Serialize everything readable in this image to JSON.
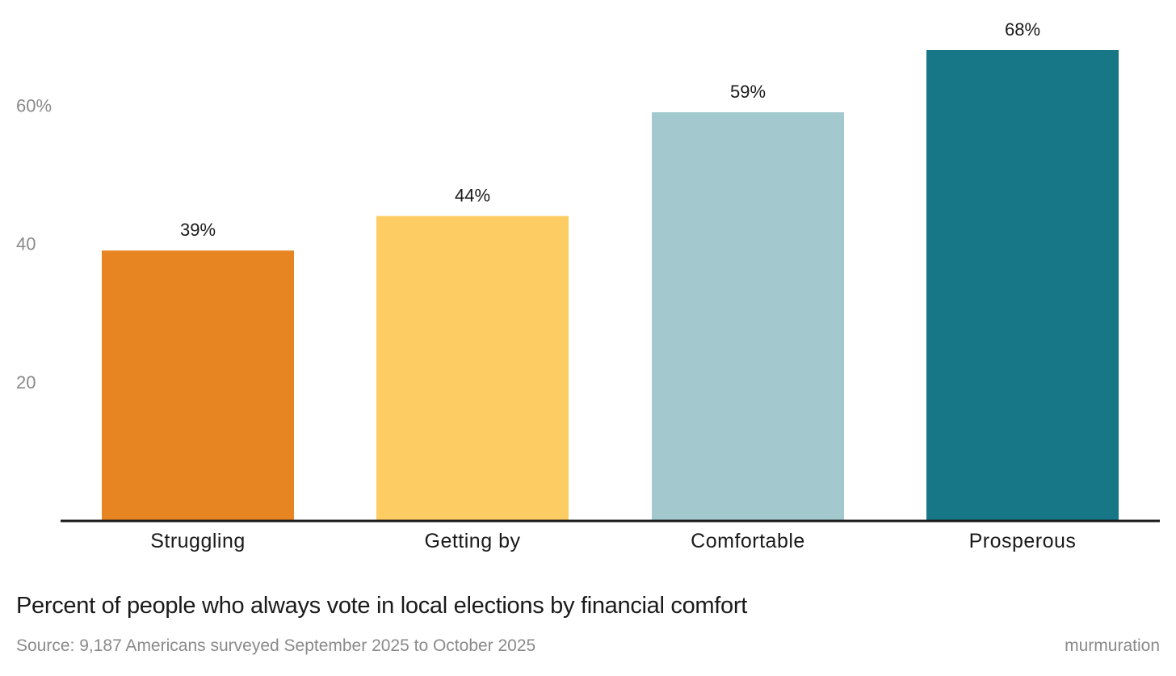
{
  "chart_data": {
    "type": "bar",
    "categories": [
      "Struggling",
      "Getting by",
      "Comfortable",
      "Prosperous"
    ],
    "values": [
      39,
      44,
      59,
      68
    ],
    "data_labels": [
      "39%",
      "44%",
      "59%",
      "68%"
    ],
    "colors": [
      "#e88523",
      "#fdcd63",
      "#a3c9cf",
      "#177786"
    ],
    "yticks": [
      {
        "value": 20,
        "label": "20"
      },
      {
        "value": 40,
        "label": "40"
      },
      {
        "value": 60,
        "label": "60%"
      }
    ],
    "ylim": [
      0,
      68
    ],
    "grid": false,
    "title": "Percent of people who always vote in local elections by financial comfort",
    "xlabel": "",
    "ylabel": ""
  },
  "caption": {
    "title": "Percent of people who always vote in local elections by financial comfort",
    "source": "Source: 9,187 Americans surveyed September 2025 to October 2025",
    "brand": "murmuration"
  }
}
